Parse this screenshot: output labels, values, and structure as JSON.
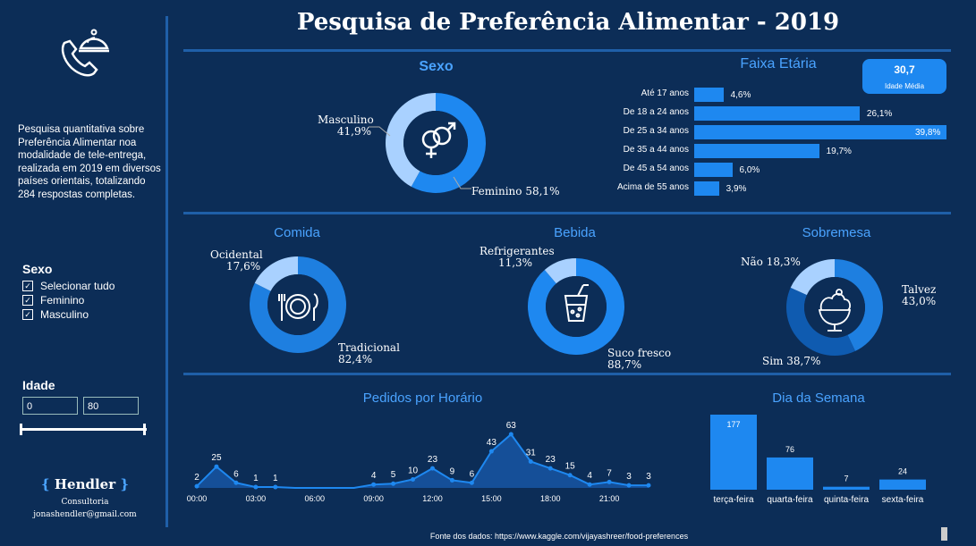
{
  "title": "Pesquisa de Preferência Alimentar - 2019",
  "description": "Pesquisa quantitativa sobre Preferência Alimentar noa modalidade de tele-entrega, realizada em 2019 em diversos países orientais, totalizando 284 respostas completas.",
  "sexo_slicer": {
    "title": "Sexo",
    "items": [
      "Selecionar tudo",
      "Feminino",
      "Masculino"
    ]
  },
  "idade_slicer": {
    "title": "Idade",
    "min": "0",
    "max": "80"
  },
  "brand": {
    "name": "Hendler",
    "sub": "Consultoria",
    "email": "jonashendler@gmail.com"
  },
  "footer": "Fonte dos dados: https://www.kaggle.com/vijayashreer/food-preferences",
  "age_card": {
    "value": "30,7",
    "label": "Idade Média"
  },
  "colors": {
    "background": "#0c2d57",
    "accent": "#1e88f0",
    "light": "#a9d1ff",
    "dark": "#0f5bb0",
    "title_blue": "#4aa3ff"
  },
  "icons": [
    "food-delivery-phone-icon",
    "gender-icon",
    "plate-cutlery-icon",
    "juice-glass-icon",
    "ice-cream-sundae-icon"
  ],
  "chart_data": [
    {
      "type": "pie",
      "title": "Sexo",
      "labels": [
        "Masculino",
        "Feminino"
      ],
      "values": [
        41.9,
        58.1
      ],
      "value_labels": [
        "41,9%",
        "58,1%"
      ]
    },
    {
      "type": "bar",
      "orientation": "horizontal",
      "title": "Faixa Etária",
      "categories": [
        "Até 17 anos",
        "De 18 a 24 anos",
        "De 25 a 34 anos",
        "De 35 a 44 anos",
        "De 45 a 54 anos",
        "Acima de 55 anos"
      ],
      "values": [
        4.6,
        26.1,
        39.8,
        19.7,
        6.0,
        3.9
      ],
      "value_labels": [
        "4,6%",
        "26,1%",
        "39,8%",
        "19,7%",
        "6,0%",
        "3,9%"
      ]
    },
    {
      "type": "pie",
      "title": "Comida",
      "labels": [
        "Ocidental",
        "Tradicional"
      ],
      "values": [
        17.6,
        82.4
      ],
      "value_labels": [
        "17,6%",
        "82,4%"
      ]
    },
    {
      "type": "pie",
      "title": "Bebida",
      "labels": [
        "Refrigerantes",
        "Suco fresco"
      ],
      "values": [
        11.3,
        88.7
      ],
      "value_labels": [
        "11,3%",
        "88,7%"
      ]
    },
    {
      "type": "pie",
      "title": "Sobremesa",
      "labels": [
        "Não",
        "Talvez",
        "Sim"
      ],
      "values": [
        18.3,
        43.0,
        38.7
      ],
      "value_labels": [
        "18,3%",
        "43,0%",
        "38,7%"
      ]
    },
    {
      "type": "area",
      "title": "Pedidos por Horário",
      "x": [
        "00:00",
        "01:00",
        "02:00",
        "03:00",
        "04:00",
        "05:00",
        "06:00",
        "07:00",
        "08:00",
        "09:00",
        "10:00",
        "11:00",
        "12:00",
        "13:00",
        "14:00",
        "15:00",
        "16:00",
        "17:00",
        "18:00",
        "19:00",
        "20:00",
        "21:00",
        "22:00",
        "23:00"
      ],
      "values": [
        2,
        25,
        6,
        1,
        1,
        null,
        null,
        null,
        null,
        4,
        5,
        10,
        23,
        9,
        6,
        43,
        63,
        31,
        23,
        15,
        4,
        7,
        3,
        3
      ],
      "tick_labels": [
        "00:00",
        "03:00",
        "06:00",
        "09:00",
        "12:00",
        "15:00",
        "18:00",
        "21:00"
      ]
    },
    {
      "type": "bar",
      "title": "Dia da Semana",
      "categories": [
        "terça-feira",
        "quarta-feira",
        "quinta-feira",
        "sexta-feira"
      ],
      "values": [
        177,
        76,
        7,
        24
      ]
    }
  ]
}
